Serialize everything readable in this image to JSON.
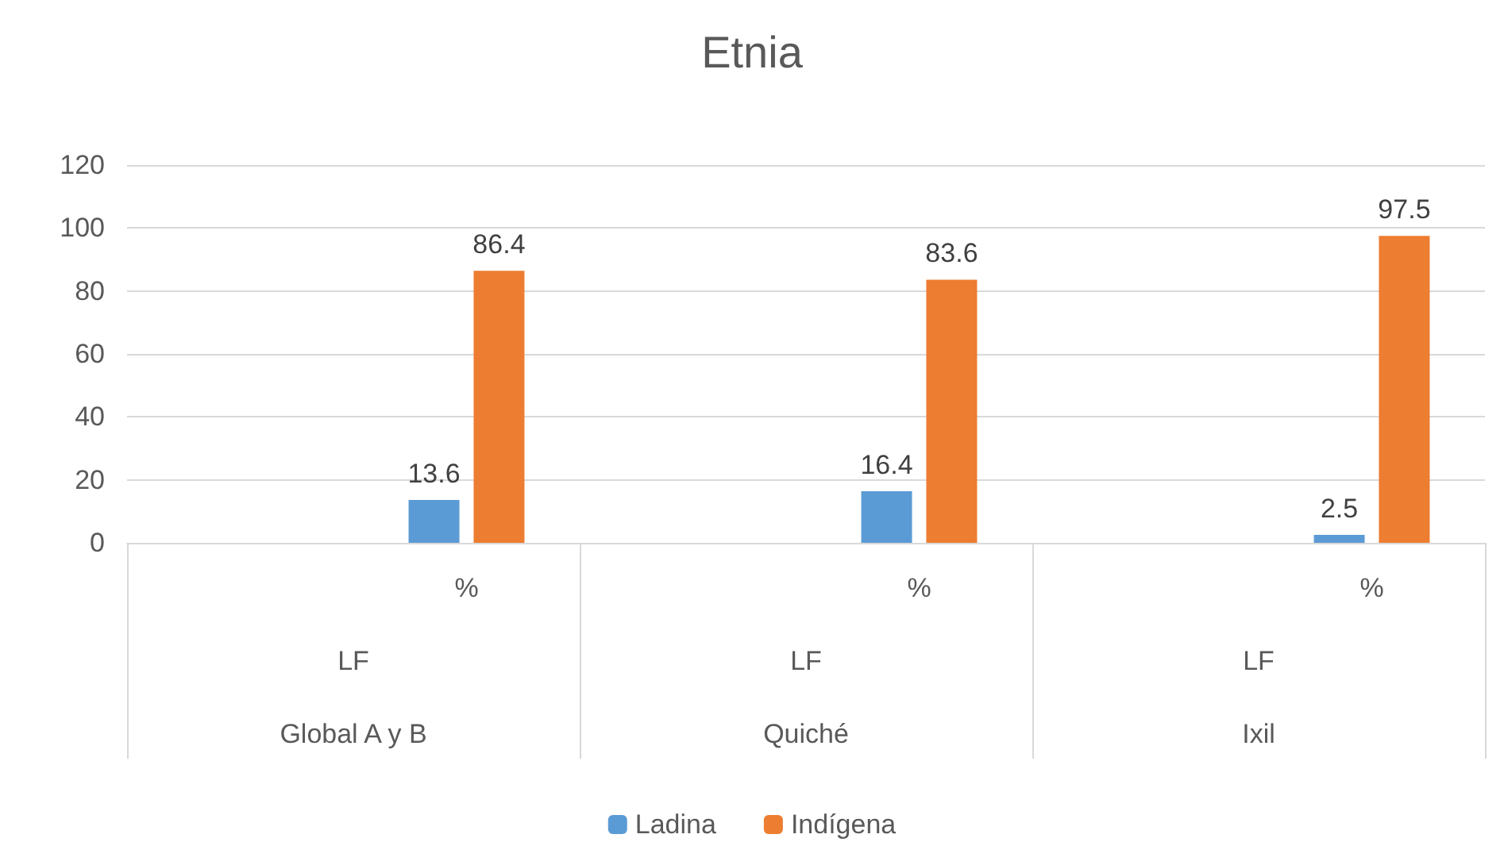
{
  "chart_data": {
    "type": "bar",
    "title": "Etnia",
    "categories": [
      null,
      "%",
      null,
      "%",
      null,
      "%"
    ],
    "annotations": [
      "LF",
      "LF",
      "LF",
      "Global A y B",
      "Quiché",
      "Ixil"
    ],
    "series": [
      {
        "name": "Ladina",
        "color": "#5b9bd5",
        "values": [
          null,
          13.6,
          null,
          16.4,
          null,
          2.5
        ]
      },
      {
        "name": "Indígena",
        "color": "#ed7d31",
        "values": [
          null,
          86.4,
          null,
          83.6,
          null,
          97.5
        ]
      }
    ],
    "ylim": [
      0,
      120
    ],
    "yticks": [
      0,
      20,
      40,
      60,
      80,
      100,
      120
    ],
    "grid": "y",
    "legend": "bottom",
    "data_labels": true
  }
}
